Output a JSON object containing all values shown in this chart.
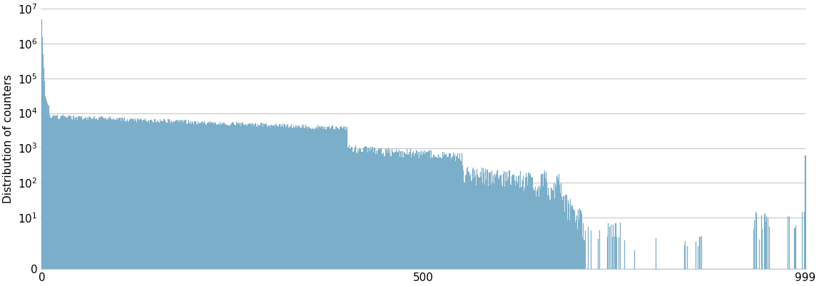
{
  "n_rows": 999,
  "bar_color": "#7baec9",
  "background_color": "#ffffff",
  "ylabel": "Distribution of counters",
  "xtick_labels": [
    "0",
    "500",
    "999"
  ],
  "xtick_positions": [
    0,
    499,
    998
  ],
  "ymax": 10000000.0,
  "grid_color": "#c8c8c8",
  "grid_linewidth": 0.8,
  "ylabel_fontsize": 11,
  "tick_fontsize": 11
}
